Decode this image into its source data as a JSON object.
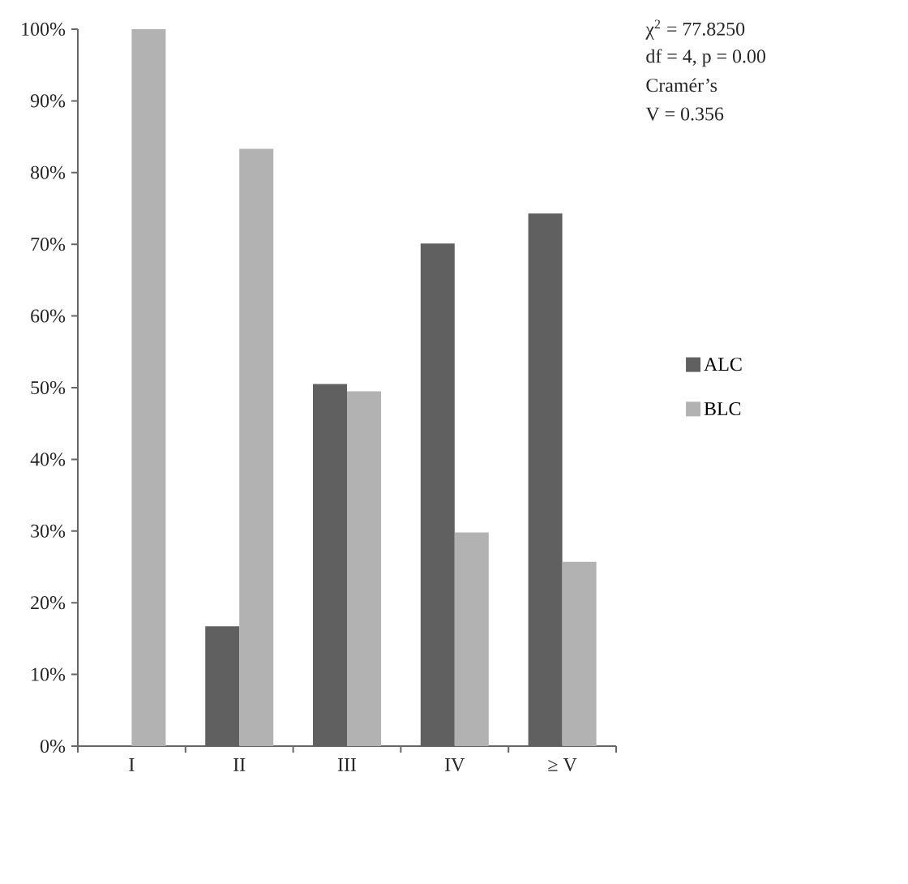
{
  "chart_data": {
    "type": "bar",
    "categories": [
      "I",
      "II",
      "III",
      "IV",
      "≥ V"
    ],
    "series": [
      {
        "name": "ALC",
        "color": "#606060",
        "values": [
          0,
          16.7,
          50.5,
          70.1,
          74.3
        ]
      },
      {
        "name": "BLC",
        "color": "#b2b2b2",
        "values": [
          100,
          83.3,
          49.5,
          29.8,
          25.7
        ]
      }
    ],
    "ylim": [
      0,
      100
    ],
    "yticks": [
      {
        "value": 0,
        "label": "0%"
      },
      {
        "value": 10,
        "label": "10%"
      },
      {
        "value": 20,
        "label": "20%"
      },
      {
        "value": 30,
        "label": "30%"
      },
      {
        "value": 40,
        "label": "40%"
      },
      {
        "value": 50,
        "label": "50%"
      },
      {
        "value": 60,
        "label": "60%"
      },
      {
        "value": 70,
        "label": "70%"
      },
      {
        "value": 80,
        "label": "80%"
      },
      {
        "value": 90,
        "label": "90%"
      },
      {
        "value": 100,
        "label": "100%"
      }
    ],
    "legend": "right",
    "annotations": [
      "χ$^{2}$ = 77.8250",
      "df = 4, p = 0.00",
      "Cramér’s",
      "V = 0.356"
    ]
  }
}
